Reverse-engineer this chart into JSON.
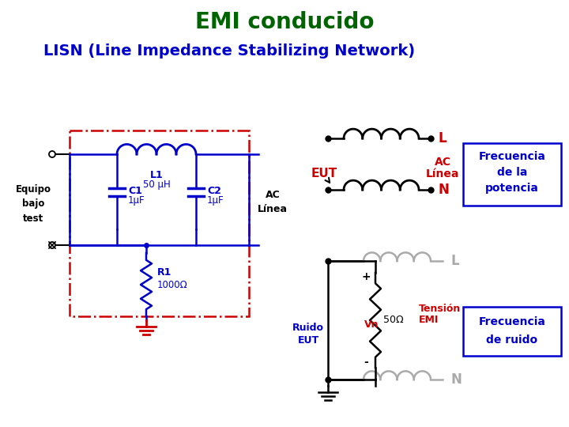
{
  "title": "EMI conducido",
  "subtitle": "LISN (Line Impedance Stabilizing Network)",
  "title_color": "#006400",
  "subtitle_color": "#0000CD",
  "background_color": "#ffffff",
  "title_fontsize": 20,
  "subtitle_fontsize": 14,
  "blue": "#0000CD",
  "red": "#CC0000",
  "gray": "#aaaaaa",
  "black": "#000000",
  "freq_potencia_text": [
    "Frecuencia",
    "de la",
    "potencia"
  ],
  "freq_ruido_text": [
    "Frecuencia",
    "de ruido"
  ],
  "label_L1": "L1",
  "label_L1_val": "50 μH",
  "label_C1": "C1",
  "label_C1_val": "1μF",
  "label_C2": "C2",
  "label_C2_val": "1μF",
  "label_R1": "R1",
  "label_R1_val": "1000Ω",
  "label_equipo": [
    "Equipo",
    "bajo",
    "test"
  ],
  "label_AC_linea": [
    "AC",
    "Línea"
  ],
  "label_EUT": "EUT",
  "label_L": "L",
  "label_N": "N",
  "label_L_gray": "L",
  "label_N_gray": "N",
  "label_Ruido_EUT": [
    "Ruido",
    "EUT"
  ],
  "label_Tension_EMI": [
    "Tensión",
    "EMI"
  ],
  "label_Vn": "Vn",
  "label_plus": "+",
  "label_minus": "-",
  "label_50ohm": "50Ω"
}
